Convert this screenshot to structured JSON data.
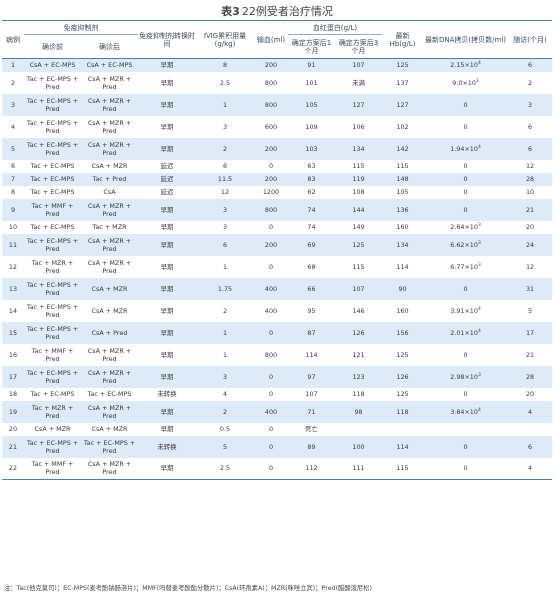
{
  "title": {
    "prefix": "表3",
    "text": "22例受者治疗情况"
  },
  "headers": {
    "case": "病例",
    "immuno_group": "免疫抑制剂",
    "immuno_before": "确诊前",
    "immuno_after": "确诊后",
    "switch_time": "免疫抑制剂转换时间",
    "ivig": "IVIG累积用量(g/kg)",
    "transfusion": "输血(ml)",
    "hb_group": "血红蛋白(g/L)",
    "hb_1m": "确定方案后1个月",
    "hb_3m": "确定方案后3个月",
    "hb_latest": "最新Hb(g/L)",
    "dna": "最新DNA拷贝(拷贝数/ml)",
    "followup": "随访(个月)"
  },
  "rows": [
    {
      "case": "1",
      "before": "CsA + EC-MPS",
      "after": "CsA + EC-MPS",
      "time": "早期",
      "ivig": "8",
      "trans": "200",
      "hb1": "91",
      "hb3": "107",
      "latest": "125",
      "dna_m": "2.15×10",
      "dna_e": "4",
      "fu": "6"
    },
    {
      "case": "2",
      "before": "Tac + EC-MPS + Pred",
      "after": "CsA + MZR + Pred",
      "time": "早期",
      "ivig": "2.5",
      "trans": "800",
      "hb1": "101",
      "hb3": "未满",
      "latest": "137",
      "dna_m": "9.0×10",
      "dna_e": "3",
      "fu": "2"
    },
    {
      "case": "3",
      "before": "Tac + EC-MPS + Pred",
      "after": "CsA + MZR + Pred",
      "time": "早期",
      "ivig": "1",
      "trans": "800",
      "hb1": "105",
      "hb3": "127",
      "latest": "127",
      "dna_m": "0",
      "dna_e": "",
      "fu": "3"
    },
    {
      "case": "4",
      "before": "Tac + EC-MPS + Pred",
      "after": "CsA + MZR + Pred",
      "time": "早期",
      "ivig": "3",
      "trans": "600",
      "hb1": "109",
      "hb3": "106",
      "latest": "102",
      "dna_m": "0",
      "dna_e": "",
      "fu": "6"
    },
    {
      "case": "5",
      "before": "Tac + EC-MPS + Pred",
      "after": "CsA + MZR + Pred",
      "time": "早期",
      "ivig": "2",
      "trans": "200",
      "hb1": "103",
      "hb3": "134",
      "latest": "142",
      "dna_m": "1.94×10",
      "dna_e": "4",
      "fu": "6"
    },
    {
      "case": "6",
      "before": "Tac + EC-MPS",
      "after": "CsA + MZR",
      "time": "延迟",
      "ivig": "6",
      "trans": "0",
      "hb1": "63",
      "hb3": "115",
      "latest": "115",
      "dna_m": "0",
      "dna_e": "",
      "fu": "12"
    },
    {
      "case": "7",
      "before": "Tac + EC-MPS",
      "after": "Tac + Pred",
      "time": "延迟",
      "ivig": "11.5",
      "trans": "200",
      "hb1": "83",
      "hb3": "119",
      "latest": "148",
      "dna_m": "0",
      "dna_e": "",
      "fu": "28"
    },
    {
      "case": "8",
      "before": "Tac + EC-MPS",
      "after": "CsA",
      "time": "延迟",
      "ivig": "12",
      "trans": "1200",
      "hb1": "62",
      "hb3": "108",
      "latest": "105",
      "dna_m": "0",
      "dna_e": "",
      "fu": "10"
    },
    {
      "case": "9",
      "before": "Tac + MMF + Pred",
      "after": "CsA + MZR + Pred",
      "time": "早期",
      "ivig": "3",
      "trans": "800",
      "hb1": "74",
      "hb3": "144",
      "latest": "136",
      "dna_m": "0",
      "dna_e": "",
      "fu": "21"
    },
    {
      "case": "10",
      "before": "Tac + EC-MPS",
      "after": "Tac + MZR",
      "time": "早期",
      "ivig": "3",
      "trans": "0",
      "hb1": "74",
      "hb3": "149",
      "latest": "160",
      "dna_m": "2.64×10",
      "dna_e": "3",
      "fu": "20"
    },
    {
      "case": "11",
      "before": "Tac + EC-MPS + Pred",
      "after": "CsA + MZR + Pred",
      "time": "早期",
      "ivig": "6",
      "trans": "200",
      "hb1": "69",
      "hb3": "125",
      "latest": "134",
      "dna_m": "6.62×10",
      "dna_e": "3",
      "fu": "24"
    },
    {
      "case": "12",
      "before": "Tac + MZR + Pred",
      "after": "CsA + MZR + Pred",
      "time": "早期",
      "ivig": "1",
      "trans": "0",
      "hb1": "68",
      "hb3": "115",
      "latest": "114",
      "dna_m": "6.77×10",
      "dna_e": "3",
      "fu": "12"
    },
    {
      "case": "13",
      "before": "Tac + EC-MPS + Pred",
      "after": "CsA + MZR",
      "time": "早期",
      "ivig": "1.75",
      "trans": "400",
      "hb1": "66",
      "hb3": "107",
      "latest": "90",
      "dna_m": "0",
      "dna_e": "",
      "fu": "31"
    },
    {
      "case": "14",
      "before": "Tac + EC-MPS + Pred",
      "after": "CsA + MZR",
      "time": "早期",
      "ivig": "2",
      "trans": "400",
      "hb1": "95",
      "hb3": "146",
      "latest": "160",
      "dna_m": "3.91×10",
      "dna_e": "4",
      "fu": "5"
    },
    {
      "case": "15",
      "before": "Tac + EC-MPS + Pred",
      "after": "CsA + Pred",
      "time": "早期",
      "ivig": "1",
      "trans": "0",
      "hb1": "87",
      "hb3": "126",
      "latest": "156",
      "dna_m": "2.01×10",
      "dna_e": "4",
      "fu": "17"
    },
    {
      "case": "16",
      "before": "Tac + MMF + Pred",
      "after": "CsA + MZR + Pred",
      "time": "早期",
      "ivig": "1",
      "trans": "800",
      "hb1": "114",
      "hb3": "121",
      "latest": "125",
      "dna_m": "0",
      "dna_e": "",
      "fu": "21"
    },
    {
      "case": "17",
      "before": "Tac + EC-MPS + Pred",
      "after": "CsA + MZR + Pred",
      "time": "早期",
      "ivig": "3",
      "trans": "0",
      "hb1": "97",
      "hb3": "123",
      "latest": "126",
      "dna_m": "2.98×10",
      "dna_e": "3",
      "fu": "28"
    },
    {
      "case": "18",
      "before": "Tac + EC-MPS",
      "after": "Tac + EC-MPS",
      "time": "未转换",
      "ivig": "4",
      "trans": "0",
      "hb1": "107",
      "hb3": "118",
      "latest": "125",
      "dna_m": "0",
      "dna_e": "",
      "fu": "20"
    },
    {
      "case": "19",
      "before": "Tac + MZR + Pred",
      "after": "CsA + MZR + Pred",
      "time": "早期",
      "ivig": "2",
      "trans": "400",
      "hb1": "71",
      "hb3": "98",
      "latest": "118",
      "dna_m": "3.84×10",
      "dna_e": "4",
      "fu": "4"
    },
    {
      "case": "20",
      "before": "CsA + MZR",
      "after": "CsA + MZR",
      "time": "早期",
      "ivig": "0.5",
      "trans": "0",
      "hb1": "死亡",
      "hb3": "",
      "latest": "",
      "dna_m": "",
      "dna_e": "",
      "fu": ""
    },
    {
      "case": "21",
      "before": "Tac + EC-MPS + Pred",
      "after": "Tac + EC-MPS + Pred",
      "time": "未转换",
      "ivig": "5",
      "trans": "0",
      "hb1": "89",
      "hb3": "100",
      "latest": "114",
      "dna_m": "0",
      "dna_e": "",
      "fu": "6"
    },
    {
      "case": "22",
      "before": "Tac + MMF + Pred",
      "after": "CsA + MZR + Pred",
      "time": "早期",
      "ivig": "2.5",
      "trans": "0",
      "hb1": "112",
      "hb3": "111",
      "latest": "115",
      "dna_m": "0",
      "dna_e": "",
      "fu": "4"
    }
  ],
  "footnote": "注：Tac(他克莫司)；EC-MPS(麦考酚钠肠溶片)；MMF(吗替麦考酚酯分散片)；CsA(环孢素A)；MZR(咪唑立宾)；Pred(醋酸泼尼松)"
}
